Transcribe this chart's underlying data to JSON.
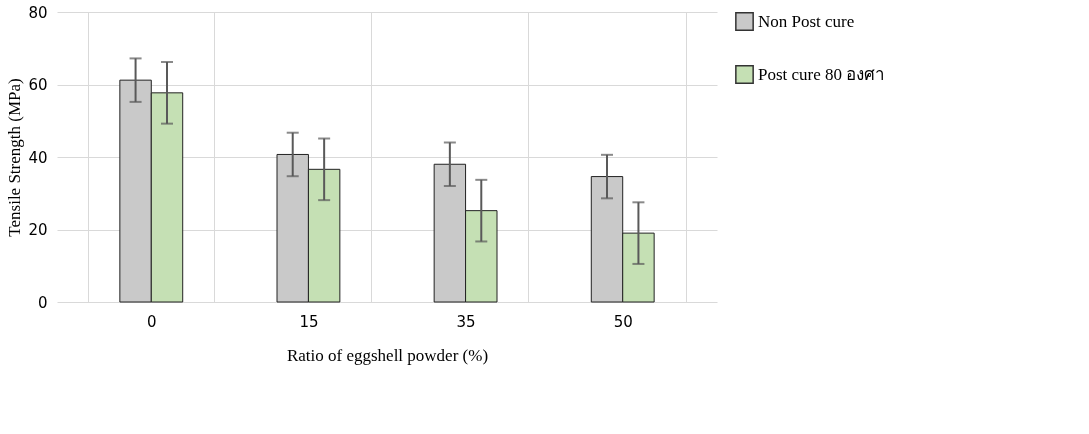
{
  "chart_data": {
    "type": "bar",
    "xlabel": "Ratio of eggshell powder (%)",
    "ylabel": "Tensile Strength (MPa)",
    "categories": [
      "0",
      "15",
      "35",
      "50"
    ],
    "series": [
      {
        "name": "Non Post cure",
        "color": "#c9c9c9",
        "values": [
          61.2,
          40.7,
          38.0,
          34.6
        ],
        "errors": [
          6,
          6,
          6,
          6
        ]
      },
      {
        "name": "Post cure 80 องศา",
        "color": "#c5e0b4",
        "values": [
          57.7,
          36.6,
          25.2,
          19.0
        ],
        "errors": [
          8.5,
          8.5,
          8.5,
          8.5
        ]
      }
    ],
    "ylim": [
      0,
      80
    ],
    "yticks": [
      0,
      20,
      40,
      60,
      80
    ],
    "grid": true,
    "legend": "right"
  }
}
